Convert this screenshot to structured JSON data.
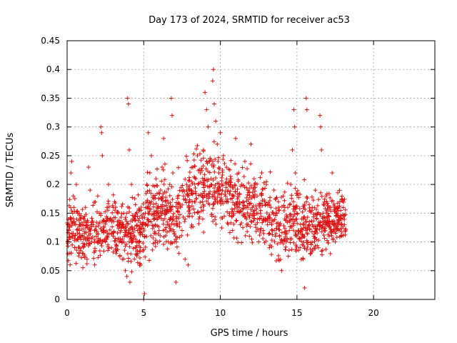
{
  "chart_data": {
    "type": "scatter",
    "title": "Day 173 of 2024, SRMTID for receiver ac53",
    "xlabel": "GPS time / hours",
    "ylabel": "SRMTID / TECUs",
    "xlim": [
      0,
      24
    ],
    "ylim": [
      0,
      0.45
    ],
    "xticks": [
      0,
      5,
      10,
      15,
      20
    ],
    "xtick_labels": [
      "0",
      "5",
      "10",
      "15",
      "20"
    ],
    "yticks": [
      0,
      0.05,
      0.1,
      0.15,
      0.2,
      0.25,
      0.3,
      0.35,
      0.4,
      0.45
    ],
    "ytick_labels": [
      "0",
      "0.05",
      "0.1",
      "0.15",
      "0.2",
      "0.25",
      "0.3",
      "0.35",
      "0.4",
      "0.45"
    ],
    "grid": true,
    "marker": "+",
    "color": "#e01010",
    "series": [
      {
        "name": "ac53",
        "points": [
          [
            0.05,
            0.1
          ],
          [
            0.1,
            0.12
          ],
          [
            0.15,
            0.08
          ],
          [
            0.2,
            0.14
          ],
          [
            0.25,
            0.22
          ],
          [
            0.3,
            0.24
          ],
          [
            0.35,
            0.11
          ],
          [
            0.4,
            0.18
          ],
          [
            0.45,
            0.16
          ],
          [
            0.5,
            0.09
          ],
          [
            0.55,
            0.13
          ],
          [
            0.6,
            0.2
          ],
          [
            0.7,
            0.15
          ],
          [
            0.8,
            0.12
          ],
          [
            0.9,
            0.11
          ],
          [
            1.0,
            0.08
          ],
          [
            1.1,
            0.14
          ],
          [
            1.2,
            0.16
          ],
          [
            1.3,
            0.07
          ],
          [
            1.4,
            0.23
          ],
          [
            1.5,
            0.19
          ],
          [
            1.6,
            0.1
          ],
          [
            1.7,
            0.13
          ],
          [
            1.8,
            0.06
          ],
          [
            1.9,
            0.11
          ],
          [
            2.0,
            0.18
          ],
          [
            2.1,
            0.15
          ],
          [
            2.2,
            0.3
          ],
          [
            2.25,
            0.29
          ],
          [
            2.3,
            0.25
          ],
          [
            2.4,
            0.12
          ],
          [
            2.5,
            0.1
          ],
          [
            2.6,
            0.16
          ],
          [
            2.7,
            0.2
          ],
          [
            2.8,
            0.14
          ],
          [
            2.9,
            0.09
          ],
          [
            3.0,
            0.11
          ],
          [
            3.1,
            0.17
          ],
          [
            3.2,
            0.08
          ],
          [
            3.3,
            0.13
          ],
          [
            3.4,
            0.1
          ],
          [
            3.5,
            0.12
          ],
          [
            3.6,
            0.07
          ],
          [
            3.7,
            0.15
          ],
          [
            3.8,
            0.05
          ],
          [
            3.9,
            0.04
          ],
          [
            3.95,
            0.35
          ],
          [
            4.0,
            0.34
          ],
          [
            4.05,
            0.26
          ],
          [
            4.1,
            0.03
          ],
          [
            4.2,
            0.2
          ],
          [
            4.3,
            0.14
          ],
          [
            4.4,
            0.11
          ],
          [
            4.5,
            0.09
          ],
          [
            4.6,
            0.12
          ],
          [
            4.7,
            0.1
          ],
          [
            4.8,
            0.06
          ],
          [
            4.9,
            0.13
          ],
          [
            5.0,
            0.0
          ],
          [
            5.05,
            0.01
          ],
          [
            5.1,
            0.15
          ],
          [
            5.2,
            0.2
          ],
          [
            5.3,
            0.29
          ],
          [
            5.4,
            0.22
          ],
          [
            5.5,
            0.25
          ],
          [
            5.6,
            0.18
          ],
          [
            5.7,
            0.14
          ],
          [
            5.8,
            0.21
          ],
          [
            5.9,
            0.16
          ],
          [
            6.0,
            0.12
          ],
          [
            6.1,
            0.19
          ],
          [
            6.2,
            0.23
          ],
          [
            6.3,
            0.28
          ],
          [
            6.4,
            0.17
          ],
          [
            6.5,
            0.15
          ],
          [
            6.6,
            0.1
          ],
          [
            6.7,
            0.2
          ],
          [
            6.8,
            0.35
          ],
          [
            6.85,
            0.32
          ],
          [
            6.9,
            0.22
          ],
          [
            7.0,
            0.1
          ],
          [
            7.1,
            0.03
          ],
          [
            7.2,
            0.13
          ],
          [
            7.3,
            0.08
          ],
          [
            7.4,
            0.16
          ],
          [
            7.5,
            0.12
          ],
          [
            7.6,
            0.18
          ],
          [
            7.7,
            0.07
          ],
          [
            7.8,
            0.2
          ],
          [
            7.9,
            0.06
          ],
          [
            8.0,
            0.15
          ],
          [
            8.1,
            0.19
          ],
          [
            8.2,
            0.23
          ],
          [
            8.3,
            0.17
          ],
          [
            8.4,
            0.21
          ],
          [
            8.5,
            0.25
          ],
          [
            8.6,
            0.14
          ],
          [
            8.7,
            0.22
          ],
          [
            8.8,
            0.18
          ],
          [
            8.9,
            0.26
          ],
          [
            9.0,
            0.36
          ],
          [
            9.1,
            0.33
          ],
          [
            9.2,
            0.3
          ],
          [
            9.3,
            0.24
          ],
          [
            9.4,
            0.2
          ],
          [
            9.5,
            0.38
          ],
          [
            9.55,
            0.4
          ],
          [
            9.6,
            0.34
          ],
          [
            9.7,
            0.31
          ],
          [
            9.8,
            0.27
          ],
          [
            9.9,
            0.22
          ],
          [
            10.0,
            0.29
          ],
          [
            10.1,
            0.2
          ],
          [
            10.2,
            0.25
          ],
          [
            10.3,
            0.17
          ],
          [
            10.4,
            0.23
          ],
          [
            10.5,
            0.19
          ],
          [
            10.6,
            0.15
          ],
          [
            10.7,
            0.21
          ],
          [
            10.8,
            0.12
          ],
          [
            10.9,
            0.18
          ],
          [
            11.0,
            0.28
          ],
          [
            11.1,
            0.16
          ],
          [
            11.2,
            0.22
          ],
          [
            11.3,
            0.13
          ],
          [
            11.4,
            0.2
          ],
          [
            11.5,
            0.17
          ],
          [
            11.6,
            0.24
          ],
          [
            11.7,
            0.14
          ],
          [
            11.8,
            0.19
          ],
          [
            11.9,
            0.11
          ],
          [
            12.0,
            0.27
          ],
          [
            12.1,
            0.16
          ],
          [
            12.2,
            0.21
          ],
          [
            12.3,
            0.13
          ],
          [
            12.4,
            0.18
          ],
          [
            12.5,
            0.1
          ],
          [
            12.6,
            0.15
          ],
          [
            12.7,
            0.22
          ],
          [
            12.8,
            0.12
          ],
          [
            12.9,
            0.17
          ],
          [
            13.0,
            0.2
          ],
          [
            13.1,
            0.14
          ],
          [
            13.2,
            0.09
          ],
          [
            13.3,
            0.16
          ],
          [
            13.4,
            0.12
          ],
          [
            13.5,
            0.19
          ],
          [
            13.6,
            0.11
          ],
          [
            13.7,
            0.15
          ],
          [
            13.8,
            0.07
          ],
          [
            13.9,
            0.13
          ],
          [
            14.0,
            0.05
          ],
          [
            14.1,
            0.18
          ],
          [
            14.2,
            0.14
          ],
          [
            14.3,
            0.1
          ],
          [
            14.4,
            0.16
          ],
          [
            14.5,
            0.12
          ],
          [
            14.6,
            0.2
          ],
          [
            14.7,
            0.26
          ],
          [
            14.8,
            0.33
          ],
          [
            14.85,
            0.3
          ],
          [
            14.9,
            0.22
          ],
          [
            15.0,
            0.15
          ],
          [
            15.1,
            0.12
          ],
          [
            15.2,
            0.09
          ],
          [
            15.3,
            0.14
          ],
          [
            15.4,
            0.07
          ],
          [
            15.5,
            0.02
          ],
          [
            15.6,
            0.35
          ],
          [
            15.65,
            0.33
          ],
          [
            15.7,
            0.1
          ],
          [
            15.8,
            0.13
          ],
          [
            15.9,
            0.08
          ],
          [
            16.0,
            0.16
          ],
          [
            16.1,
            0.11
          ],
          [
            16.2,
            0.19
          ],
          [
            16.3,
            0.14
          ],
          [
            16.4,
            0.09
          ],
          [
            16.5,
            0.32
          ],
          [
            16.55,
            0.3
          ],
          [
            16.6,
            0.26
          ],
          [
            16.7,
            0.15
          ],
          [
            16.8,
            0.12
          ],
          [
            16.9,
            0.18
          ],
          [
            17.0,
            0.14
          ],
          [
            17.1,
            0.11
          ],
          [
            17.2,
            0.16
          ],
          [
            17.3,
            0.22
          ],
          [
            17.4,
            0.13
          ],
          [
            17.5,
            0.1
          ],
          [
            17.6,
            0.15
          ],
          [
            17.7,
            0.12
          ],
          [
            17.8,
            0.17
          ],
          [
            17.9,
            0.11
          ],
          [
            18.0,
            0.14
          ],
          [
            18.1,
            0.13
          ]
        ]
      }
    ],
    "dense_band": {
      "x_range": [
        0,
        18.2
      ],
      "segments": [
        [
          0,
          0.12,
          0.035
        ],
        [
          1,
          0.11,
          0.035
        ],
        [
          2,
          0.12,
          0.035
        ],
        [
          3,
          0.12,
          0.035
        ],
        [
          4,
          0.11,
          0.035
        ],
        [
          5,
          0.13,
          0.04
        ],
        [
          6,
          0.16,
          0.045
        ],
        [
          7,
          0.14,
          0.045
        ],
        [
          8,
          0.18,
          0.045
        ],
        [
          9,
          0.2,
          0.05
        ],
        [
          10,
          0.19,
          0.045
        ],
        [
          11,
          0.17,
          0.045
        ],
        [
          12,
          0.16,
          0.045
        ],
        [
          13,
          0.15,
          0.04
        ],
        [
          14,
          0.13,
          0.04
        ],
        [
          15,
          0.14,
          0.045
        ],
        [
          16,
          0.13,
          0.04
        ],
        [
          17,
          0.14,
          0.035
        ],
        [
          18,
          0.14,
          0.03
        ]
      ],
      "count": 1500
    }
  }
}
